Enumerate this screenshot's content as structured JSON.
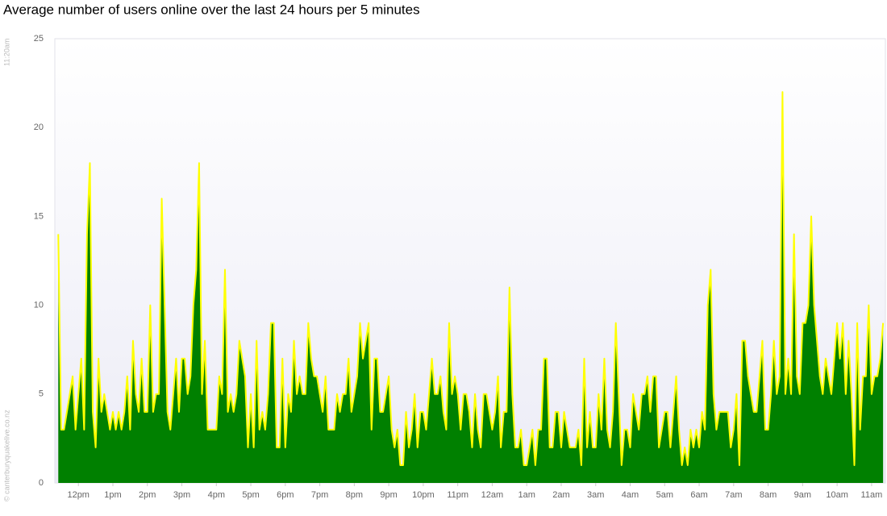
{
  "chart_data": {
    "type": "area",
    "title": "Average number of users online over the last 24 hours per 5 minutes",
    "side_time": "11:20am",
    "credit": "© canterburyquakelive.co.nz",
    "fill_color": "#008000",
    "line_color": "#ffff00",
    "grid": false,
    "xlim": [
      679,
      2124
    ],
    "ylim": [
      0,
      25
    ],
    "yticks": [
      0,
      5,
      10,
      15,
      20,
      25
    ],
    "xticks": [
      {
        "value": 720,
        "label": "12pm"
      },
      {
        "value": 780,
        "label": "1pm"
      },
      {
        "value": 840,
        "label": "2pm"
      },
      {
        "value": 900,
        "label": "3pm"
      },
      {
        "value": 960,
        "label": "4pm"
      },
      {
        "value": 1020,
        "label": "5pm"
      },
      {
        "value": 1080,
        "label": "6pm"
      },
      {
        "value": 1140,
        "label": "7pm"
      },
      {
        "value": 1200,
        "label": "8pm"
      },
      {
        "value": 1260,
        "label": "9pm"
      },
      {
        "value": 1320,
        "label": "10pm"
      },
      {
        "value": 1380,
        "label": "11pm"
      },
      {
        "value": 1440,
        "label": "12am"
      },
      {
        "value": 1500,
        "label": "1am"
      },
      {
        "value": 1560,
        "label": "2am"
      },
      {
        "value": 1620,
        "label": "3am"
      },
      {
        "value": 1680,
        "label": "4am"
      },
      {
        "value": 1740,
        "label": "5am"
      },
      {
        "value": 1800,
        "label": "6am"
      },
      {
        "value": 1860,
        "label": "7am"
      },
      {
        "value": 1920,
        "label": "8am"
      },
      {
        "value": 1980,
        "label": "9am"
      },
      {
        "value": 2040,
        "label": "10am"
      },
      {
        "value": 2100,
        "label": "11am"
      }
    ],
    "x": [
      685,
      690,
      695,
      700,
      705,
      710,
      715,
      720,
      725,
      730,
      735,
      740,
      745,
      750,
      755,
      760,
      765,
      770,
      775,
      780,
      785,
      790,
      795,
      800,
      805,
      810,
      815,
      820,
      825,
      830,
      835,
      840,
      845,
      850,
      855,
      860,
      865,
      870,
      875,
      880,
      885,
      890,
      895,
      900,
      905,
      910,
      915,
      920,
      925,
      930,
      935,
      940,
      945,
      950,
      955,
      960,
      965,
      970,
      975,
      980,
      985,
      990,
      995,
      1000,
      1005,
      1010,
      1015,
      1020,
      1025,
      1030,
      1035,
      1040,
      1045,
      1050,
      1055,
      1060,
      1065,
      1070,
      1075,
      1080,
      1085,
      1090,
      1095,
      1100,
      1105,
      1110,
      1115,
      1120,
      1125,
      1130,
      1135,
      1140,
      1145,
      1150,
      1155,
      1160,
      1165,
      1170,
      1175,
      1180,
      1185,
      1190,
      1195,
      1200,
      1205,
      1210,
      1215,
      1220,
      1225,
      1230,
      1235,
      1240,
      1245,
      1250,
      1255,
      1260,
      1265,
      1270,
      1275,
      1280,
      1285,
      1290,
      1295,
      1300,
      1305,
      1310,
      1315,
      1320,
      1325,
      1330,
      1335,
      1340,
      1345,
      1350,
      1355,
      1360,
      1365,
      1370,
      1375,
      1380,
      1385,
      1390,
      1395,
      1400,
      1405,
      1410,
      1415,
      1420,
      1425,
      1430,
      1435,
      1440,
      1445,
      1450,
      1455,
      1460,
      1465,
      1470,
      1475,
      1480,
      1485,
      1490,
      1495,
      1500,
      1505,
      1510,
      1515,
      1520,
      1525,
      1530,
      1535,
      1540,
      1545,
      1550,
      1555,
      1560,
      1565,
      1570,
      1575,
      1580,
      1585,
      1590,
      1595,
      1600,
      1605,
      1610,
      1615,
      1620,
      1625,
      1630,
      1635,
      1640,
      1645,
      1650,
      1655,
      1660,
      1665,
      1670,
      1675,
      1680,
      1685,
      1690,
      1695,
      1700,
      1705,
      1710,
      1715,
      1720,
      1725,
      1730,
      1735,
      1740,
      1745,
      1750,
      1755,
      1760,
      1765,
      1770,
      1775,
      1780,
      1785,
      1790,
      1795,
      1800,
      1805,
      1810,
      1815,
      1820,
      1825,
      1830,
      1835,
      1840,
      1845,
      1850,
      1855,
      1860,
      1865,
      1870,
      1875,
      1880,
      1885,
      1890,
      1895,
      1900,
      1905,
      1910,
      1915,
      1920,
      1925,
      1930,
      1935,
      1940,
      1945,
      1950,
      1955,
      1960,
      1965,
      1970,
      1975,
      1980,
      1985,
      1990,
      1995,
      2000,
      2005,
      2010,
      2015,
      2020,
      2025,
      2030,
      2035,
      2040,
      2045,
      2050,
      2055,
      2060,
      2065,
      2070,
      2075,
      2080,
      2085,
      2090,
      2095,
      2100,
      2105,
      2110,
      2115,
      2120
    ],
    "values": [
      14,
      3,
      3,
      4,
      5,
      6,
      3,
      5,
      7,
      3,
      14,
      18,
      4,
      2,
      7,
      4,
      5,
      4,
      3,
      4,
      3,
      4,
      3,
      4,
      6,
      3,
      8,
      5,
      4,
      7,
      4,
      4,
      10,
      4,
      5,
      5,
      16,
      10,
      4,
      3,
      5,
      7,
      4,
      7,
      7,
      5,
      6,
      10,
      12,
      18,
      5,
      8,
      3,
      3,
      3,
      3,
      6,
      5,
      12,
      4,
      5,
      4,
      5,
      8,
      7,
      6,
      2,
      5,
      2,
      8,
      3,
      4,
      3,
      5,
      9,
      9,
      2,
      2,
      7,
      2,
      5,
      4,
      8,
      5,
      6,
      5,
      5,
      9,
      7,
      6,
      6,
      5,
      4,
      6,
      3,
      3,
      3,
      5,
      4,
      5,
      5,
      7,
      4,
      5,
      6,
      9,
      7,
      8,
      9,
      3,
      7,
      7,
      4,
      4,
      5,
      6,
      3,
      2,
      3,
      1,
      1,
      4,
      2,
      3,
      5,
      2,
      4,
      4,
      3,
      5,
      7,
      5,
      5,
      6,
      4,
      3,
      9,
      5,
      6,
      5,
      3,
      5,
      5,
      4,
      2,
      5,
      3,
      2,
      5,
      5,
      4,
      3,
      4,
      6,
      2,
      4,
      4,
      11,
      5,
      2,
      2,
      3,
      1,
      1,
      2,
      3,
      1,
      3,
      3,
      7,
      7,
      2,
      2,
      4,
      4,
      2,
      4,
      3,
      2,
      2,
      2,
      3,
      1,
      7,
      2,
      4,
      2,
      2,
      5,
      3,
      7,
      3,
      2,
      4,
      9,
      5,
      1,
      3,
      3,
      2,
      5,
      4,
      3,
      5,
      5,
      6,
      4,
      6,
      6,
      2,
      3,
      4,
      4,
      2,
      4,
      6,
      3,
      1,
      2,
      1,
      3,
      2,
      3,
      2,
      4,
      3,
      10,
      12,
      5,
      3,
      4,
      4,
      4,
      4,
      2,
      3,
      5,
      1,
      8,
      8,
      6,
      5,
      4,
      4,
      6,
      8,
      3,
      3,
      5,
      8,
      5,
      6,
      22,
      5,
      7,
      5,
      14,
      6,
      5,
      9,
      9,
      10,
      15,
      10,
      8,
      6,
      5,
      7,
      6,
      5,
      7,
      9,
      7,
      9,
      5,
      8,
      5,
      1,
      9,
      3,
      6,
      6,
      10,
      5,
      6,
      6,
      7,
      9
    ]
  }
}
